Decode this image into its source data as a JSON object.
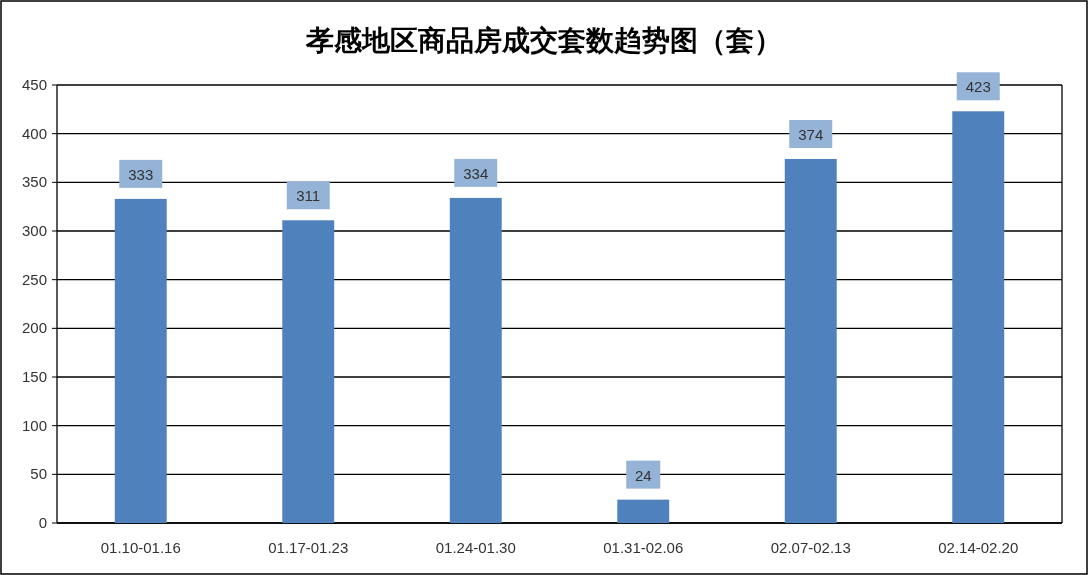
{
  "chart_data": {
    "type": "bar",
    "title": "孝感地区商品房成交套数趋势图（套）",
    "categories": [
      "01.10-01.16",
      "01.17-01.23",
      "01.24-01.30",
      "01.31-02.06",
      "02.07-02.13",
      "02.14-02.20"
    ],
    "values": [
      333,
      311,
      334,
      24,
      374,
      423
    ],
    "color": "#4f81bd",
    "ylim": [
      0,
      450
    ],
    "yticks": [
      0,
      50,
      100,
      150,
      200,
      250,
      300,
      350,
      400,
      450
    ],
    "grid": "y",
    "data_labels": true
  }
}
